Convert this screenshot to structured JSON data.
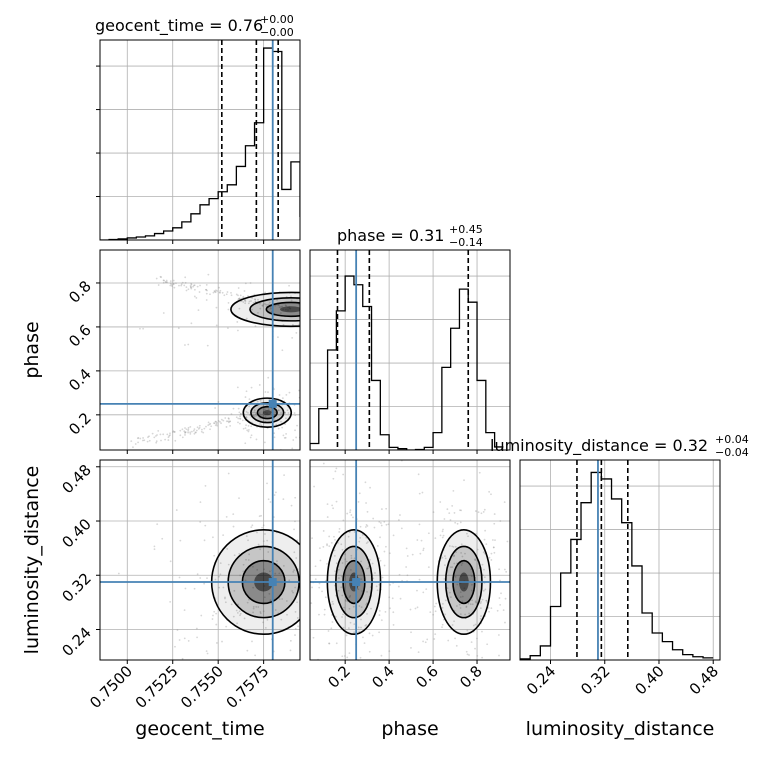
{
  "chart_data": {
    "type": "corner",
    "parameters": [
      "geocent_time",
      "phase",
      "luminosity_distance"
    ],
    "truth": {
      "geocent_time": 0.758,
      "phase": 0.25,
      "luminosity_distance": 0.31
    },
    "colors": {
      "truth": "#4682b4",
      "hist": "#000000",
      "grid": "#b0b0b0",
      "samples": "#8c8c8c"
    },
    "grid": true,
    "axes": {
      "geocent_time": {
        "range": [
          0.7485,
          0.7595
        ],
        "ticks": [
          "0.7500",
          "0.7525",
          "0.7550",
          "0.7575"
        ],
        "tick_values": [
          0.75,
          0.7525,
          0.755,
          0.7575
        ]
      },
      "phase": {
        "range": [
          0.04,
          0.95
        ],
        "ticks": [
          "0.2",
          "0.4",
          "0.6",
          "0.8"
        ],
        "tick_values": [
          0.2,
          0.4,
          0.6,
          0.8
        ]
      },
      "luminosity_distance": {
        "range": [
          0.195,
          0.49
        ],
        "ticks": [
          "0.24",
          "0.32",
          "0.40",
          "0.48"
        ],
        "tick_values": [
          0.24,
          0.32,
          0.4,
          0.48
        ]
      }
    },
    "titles": [
      {
        "param": "geocent_time",
        "label": "geocent_time = 0.76",
        "plus": "+0.00",
        "minus": "−0.00"
      },
      {
        "param": "phase",
        "label": "phase = 0.31",
        "plus": "+0.45",
        "minus": "−0.14"
      },
      {
        "param": "luminosity_distance",
        "label": "luminosity_distance = 0.32",
        "plus": "+0.04",
        "minus": "−0.04"
      }
    ],
    "quantile_lines": {
      "geocent_time": [
        0.7552,
        0.7571,
        0.7583
      ],
      "phase": [
        0.165,
        0.31,
        0.76
      ],
      "luminosity_distance": [
        0.279,
        0.315,
        0.354
      ]
    },
    "histograms": {
      "geocent_time": {
        "edges": [
          0.7485,
          0.749,
          0.7495,
          0.75,
          0.7505,
          0.751,
          0.7515,
          0.752,
          0.7525,
          0.753,
          0.7535,
          0.754,
          0.7545,
          0.755,
          0.7555,
          0.756,
          0.7565,
          0.757,
          0.7575,
          0.758,
          0.7585,
          0.759,
          0.7595
        ],
        "counts": [
          0,
          0.2,
          0.5,
          0.9,
          1.3,
          1.8,
          2.8,
          3.9,
          5.3,
          7.9,
          11.4,
          15.3,
          18.0,
          21.0,
          24.0,
          32.0,
          41.0,
          51.0,
          83.5,
          82.0,
          22.0,
          34.0,
          10.0
        ],
        "max": 87
      },
      "phase": {
        "edges": [
          0.04,
          0.08,
          0.12,
          0.16,
          0.2,
          0.24,
          0.28,
          0.32,
          0.36,
          0.4,
          0.44,
          0.48,
          0.52,
          0.56,
          0.6,
          0.64,
          0.68,
          0.72,
          0.76,
          0.8,
          0.84,
          0.88,
          0.92
        ],
        "counts": [
          1.5,
          9.5,
          23,
          32,
          40,
          38,
          33,
          16,
          3.5,
          0.6,
          0.3,
          0,
          0.1,
          0.6,
          4,
          19,
          28,
          37,
          34,
          16,
          4,
          0.7
        ],
        "max": 46
      },
      "luminosity_distance": {
        "edges": [
          0.195,
          0.21,
          0.225,
          0.24,
          0.255,
          0.27,
          0.285,
          0.3,
          0.315,
          0.33,
          0.345,
          0.36,
          0.375,
          0.39,
          0.405,
          0.42,
          0.435,
          0.45,
          0.465,
          0.48
        ],
        "counts": [
          0.2,
          0.8,
          2.6,
          9.9,
          16.1,
          22.3,
          29.1,
          34.7,
          33.5,
          29.8,
          25.4,
          17.4,
          8.7,
          5.0,
          3.4,
          1.9,
          1.0,
          0.6,
          0.4
        ],
        "max": 37
      }
    },
    "density_contours": [
      {
        "x": "geocent_time",
        "y": "phase",
        "modes": [
          {
            "x": 0.7577,
            "y": 0.21,
            "sx": 0.0006,
            "sy": 0.03
          },
          {
            "x": 0.759,
            "y": 0.68,
            "sx": 0.0015,
            "sy": 0.035
          }
        ]
      },
      {
        "x": "geocent_time",
        "y": "luminosity_distance",
        "modes": [
          {
            "x": 0.7575,
            "y": 0.31,
            "sx": 0.0013,
            "sy": 0.035
          }
        ]
      },
      {
        "x": "phase",
        "y": "luminosity_distance",
        "modes": [
          {
            "x": 0.24,
            "y": 0.31,
            "sx": 0.055,
            "sy": 0.035
          },
          {
            "x": 0.74,
            "y": 0.31,
            "sx": 0.055,
            "sy": 0.035
          }
        ]
      }
    ]
  }
}
